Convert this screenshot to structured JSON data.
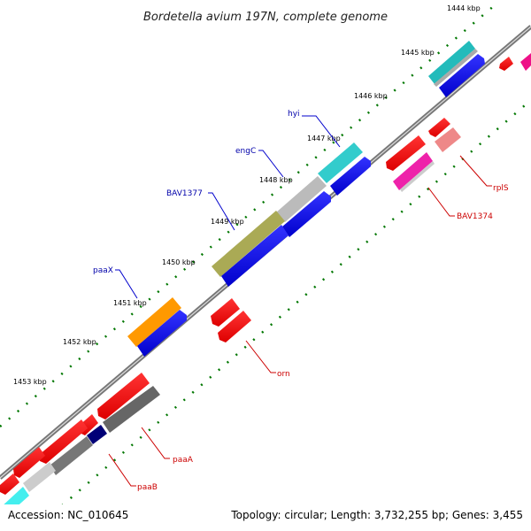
{
  "title": "Bordetella avium 197N, complete genome",
  "footer": {
    "accession": "Accession: NC_010645",
    "summary": "Topology: circular; Length: 3,732,255 bp; Genes: 3,455"
  },
  "ticks": [
    "1444 kbp",
    "1445 kbp",
    "1446 kbp",
    "1447 kbp",
    "1448 kbp",
    "1449 kbp",
    "1450 kbp",
    "1451 kbp",
    "1452 kbp",
    "1453 kbp"
  ],
  "gene_labels": {
    "hyi": "hyi",
    "engC": "engC",
    "BAV1377": "BAV1377",
    "paaX": "paaX",
    "rplS": "rplS",
    "BAV1374": "BAV1374",
    "orn": "orn",
    "paaA": "paaA",
    "paaB": "paaB"
  },
  "colors": {
    "forward_cds": "#0000ee",
    "reverse_cds": "#ee0000",
    "label_forward": "#0000aa",
    "label_reverse": "#cc0000",
    "backbone": "#888888",
    "tick_dots": "#007700"
  }
}
